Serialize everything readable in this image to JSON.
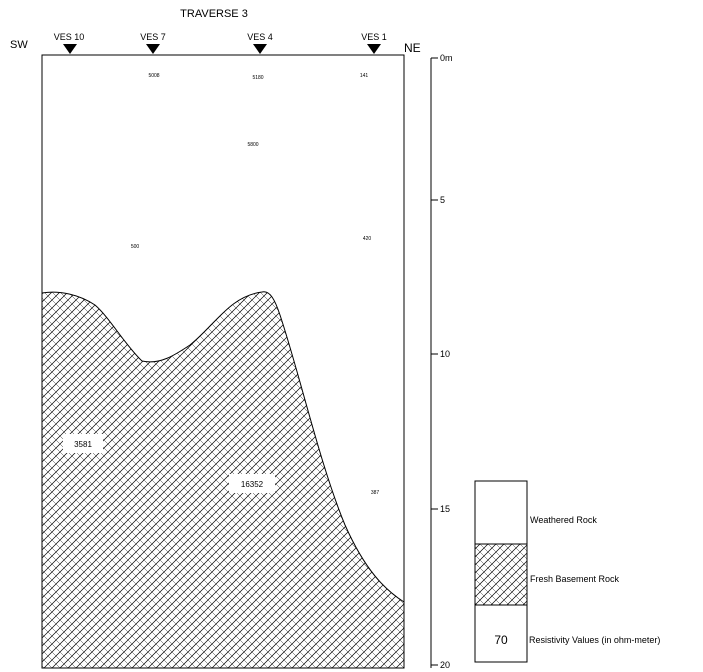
{
  "title": "TRAVERSE 3",
  "orientation": {
    "left": "SW",
    "right": "NE"
  },
  "stations": [
    {
      "label": "VES 10"
    },
    {
      "label": "VES 7"
    },
    {
      "label": "VES 4"
    },
    {
      "label": "VES 1"
    }
  ],
  "depth_axis": {
    "ticks": [
      "0m",
      "5",
      "10",
      "15",
      "20"
    ]
  },
  "resistivity_labels": [
    {
      "text": "5008"
    },
    {
      "text": "5180"
    },
    {
      "text": "141"
    },
    {
      "text": "5800"
    },
    {
      "text": "500"
    },
    {
      "text": "420"
    },
    {
      "text": "3581"
    },
    {
      "text": "16352"
    },
    {
      "text": "387"
    }
  ],
  "legend": {
    "items": [
      {
        "label": "Weathered Rock"
      },
      {
        "label": "Fresh Basement Rock"
      },
      {
        "label": "Resistivity Values (in ohm-meter)",
        "sample": "70"
      }
    ]
  }
}
